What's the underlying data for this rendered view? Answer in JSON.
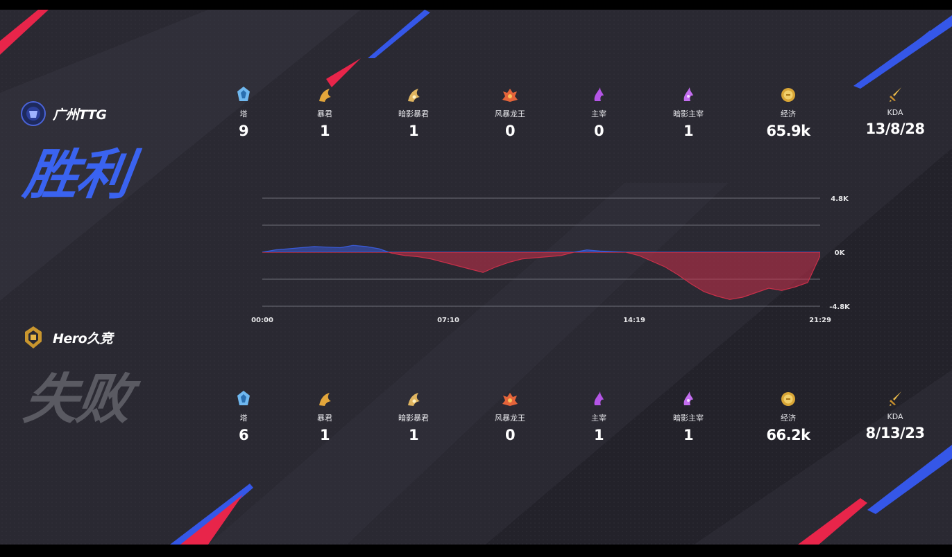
{
  "teams": [
    {
      "name": "广州TTG",
      "result": "胜利",
      "color": "#3a63f0",
      "stats": [
        {
          "icon": "tower-icon",
          "label": "塔",
          "value": "9"
        },
        {
          "icon": "tyrant-icon",
          "label": "暴君",
          "value": "1"
        },
        {
          "icon": "shadow-tyrant-icon",
          "label": "暗影暴君",
          "value": "1"
        },
        {
          "icon": "storm-dragon-icon",
          "label": "风暴龙王",
          "value": "0"
        },
        {
          "icon": "overlord-icon",
          "label": "主宰",
          "value": "0"
        },
        {
          "icon": "shadow-overlord-icon",
          "label": "暗影主宰",
          "value": "1"
        },
        {
          "icon": "gold-icon",
          "label": "经济",
          "value": "65.9k"
        },
        {
          "icon": "kda-sword-icon",
          "label": "KDA",
          "value": "13/8/28"
        }
      ]
    },
    {
      "name": "Hero久竞",
      "result": "失败",
      "color": "#5a5a62",
      "stats": [
        {
          "icon": "tower-icon",
          "label": "塔",
          "value": "6"
        },
        {
          "icon": "tyrant-icon",
          "label": "暴君",
          "value": "1"
        },
        {
          "icon": "shadow-tyrant-icon",
          "label": "暗影暴君",
          "value": "1"
        },
        {
          "icon": "storm-dragon-icon",
          "label": "风暴龙王",
          "value": "0"
        },
        {
          "icon": "overlord-icon",
          "label": "主宰",
          "value": "1"
        },
        {
          "icon": "shadow-overlord-icon",
          "label": "暗影主宰",
          "value": "1"
        },
        {
          "icon": "gold-icon",
          "label": "经济",
          "value": "66.2k"
        },
        {
          "icon": "kda-sword-icon",
          "label": "KDA",
          "value": "8/13/23"
        }
      ]
    }
  ],
  "colors": {
    "lead_positive": "#3a5bd9",
    "lead_negative": "#c8304a",
    "accent_red": "#e8254a",
    "accent_blue": "#3557e8"
  },
  "chart_data": {
    "type": "area",
    "title": "",
    "x_tick_labels": [
      "00:00",
      "07:10",
      "14:19",
      "21:29"
    ],
    "y_tick_labels": [
      "4.8K",
      "0K",
      "-4.8K"
    ],
    "ylim": [
      -4800,
      4800
    ],
    "x_unit": "minutes",
    "xlim": [
      0,
      21.48
    ],
    "series": [
      {
        "x": [
          0,
          0.5,
          1,
          1.5,
          2,
          2.5,
          3,
          3.5,
          4,
          4.5,
          5,
          5.5,
          6,
          6.5,
          7,
          7.5,
          8,
          8.5,
          9,
          9.5,
          10,
          10.5,
          11,
          11.5,
          12,
          12.5,
          13,
          13.5,
          14,
          14.5,
          15,
          15.5,
          16,
          16.5,
          17,
          17.5,
          18,
          18.5,
          19,
          19.5,
          20,
          20.5,
          21,
          21.48
        ],
        "values": [
          0,
          200,
          300,
          400,
          500,
          450,
          400,
          600,
          500,
          300,
          -100,
          -300,
          -400,
          -600,
          -900,
          -1200,
          -1500,
          -1800,
          -1300,
          -900,
          -600,
          -500,
          -400,
          -300,
          0,
          200,
          100,
          50,
          0,
          -300,
          -800,
          -1300,
          -2000,
          -2800,
          -3500,
          -3900,
          -4200,
          -4000,
          -3600,
          -3200,
          -3400,
          -3100,
          -2700,
          -300
        ]
      }
    ]
  }
}
